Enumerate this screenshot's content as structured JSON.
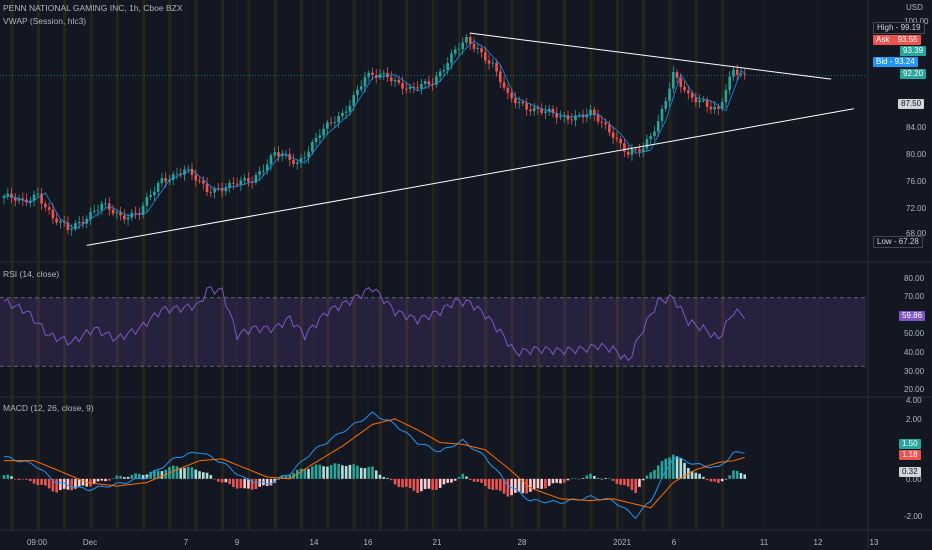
{
  "header": {
    "symbol_line": "PENN NATIONAL GAMING INC, 1h, Cboe BZX",
    "vwap_line": "VWAP (Session, hlc3)",
    "currency": "USD"
  },
  "price_tags": {
    "high": {
      "label": "High",
      "value": "99.19"
    },
    "ask": {
      "label": "Ask",
      "value": "93.55"
    },
    "last": {
      "value": "93.39"
    },
    "bid": {
      "label": "Bid",
      "value": "93.24"
    },
    "vwap": {
      "value": "92.20"
    },
    "level": {
      "value": "87.50"
    },
    "low": {
      "label": "Low",
      "value": "67.28"
    }
  },
  "price_ticks": [
    "100.00",
    "84.00",
    "80.00",
    "76.00",
    "72.00",
    "68.00"
  ],
  "rsi": {
    "title": "RSI (14, close)",
    "ticks": [
      "80.00",
      "70.00",
      "50.00",
      "40.00",
      "30.00",
      "20.00"
    ],
    "value": "59.86"
  },
  "macd": {
    "title": "MACD (12, 26, close, 9)",
    "ticks": [
      "4.00",
      "2.00",
      "0.00",
      "-2.00"
    ],
    "macd_value": "1.50",
    "signal_value": "1.18",
    "hist_value": "0.32"
  },
  "x_ticks": [
    "09:00",
    "Dec",
    "7",
    "9",
    "14",
    "16",
    "21",
    "28",
    "2021",
    "6",
    "11",
    "12",
    "13"
  ],
  "colors": {
    "bg": "#131722",
    "up": "#26a69a",
    "down": "#ef5350",
    "rsi": "#7e57c2",
    "macd": "#2196f3",
    "signal": "#ff6d00",
    "trendline": "#ffffff",
    "session": "#3d2f14"
  },
  "chart_data": {
    "type": "candlestick",
    "symbol": "PENN NATIONAL GAMING INC",
    "interval": "1h",
    "price_range": [
      66.5,
      101.5
    ],
    "price_key_points": [
      {
        "t": 0,
        "price": 75.0
      },
      {
        "t": 5,
        "price": 74.0
      },
      {
        "t": 9,
        "price": 75.5
      },
      {
        "t": 13,
        "price": 71.5
      },
      {
        "t": 17,
        "price": 70.0
      },
      {
        "t": 21,
        "price": 71.5
      },
      {
        "t": 26,
        "price": 73.5
      },
      {
        "t": 31,
        "price": 72.0
      },
      {
        "t": 36,
        "price": 72.5
      },
      {
        "t": 42,
        "price": 77.5
      },
      {
        "t": 48,
        "price": 79.0
      },
      {
        "t": 54,
        "price": 76.0
      },
      {
        "t": 60,
        "price": 76.5
      },
      {
        "t": 66,
        "price": 77.5
      },
      {
        "t": 72,
        "price": 81.5
      },
      {
        "t": 78,
        "price": 80.0
      },
      {
        "t": 84,
        "price": 84.5
      },
      {
        "t": 90,
        "price": 87.5
      },
      {
        "t": 96,
        "price": 93.0
      },
      {
        "t": 102,
        "price": 93.5
      },
      {
        "t": 108,
        "price": 91.0
      },
      {
        "t": 114,
        "price": 92.5
      },
      {
        "t": 120,
        "price": 97.0
      },
      {
        "t": 123,
        "price": 98.6
      },
      {
        "t": 126,
        "price": 97.5
      },
      {
        "t": 130,
        "price": 95.0
      },
      {
        "t": 134,
        "price": 90.0
      },
      {
        "t": 140,
        "price": 88.5
      },
      {
        "t": 148,
        "price": 87.0
      },
      {
        "t": 156,
        "price": 87.5
      },
      {
        "t": 162,
        "price": 84.5
      },
      {
        "t": 166,
        "price": 81.5
      },
      {
        "t": 170,
        "price": 82.0
      },
      {
        "t": 174,
        "price": 86.5
      },
      {
        "t": 178,
        "price": 93.5
      },
      {
        "t": 182,
        "price": 90.0
      },
      {
        "t": 186,
        "price": 89.5
      },
      {
        "t": 190,
        "price": 88.0
      },
      {
        "t": 194,
        "price": 94.0
      },
      {
        "t": 197,
        "price": 93.4
      }
    ],
    "trendlines": [
      {
        "name": "Upper",
        "from": {
          "t": 124,
          "price": 99.8
        },
        "to": {
          "t": 220,
          "price": 92.8
        }
      },
      {
        "name": "Lower",
        "from": {
          "t": 22,
          "price": 67.5
        },
        "to": {
          "t": 226,
          "price": 88.3
        }
      }
    ],
    "rsi_range": [
      15,
      85
    ],
    "rsi_key_points": [
      {
        "t": 0,
        "v": 68
      },
      {
        "t": 6,
        "v": 62
      },
      {
        "t": 12,
        "v": 48
      },
      {
        "t": 18,
        "v": 44
      },
      {
        "t": 24,
        "v": 52
      },
      {
        "t": 30,
        "v": 46
      },
      {
        "t": 36,
        "v": 52
      },
      {
        "t": 42,
        "v": 63
      },
      {
        "t": 48,
        "v": 64
      },
      {
        "t": 52,
        "v": 66
      },
      {
        "t": 54,
        "v": 75
      },
      {
        "t": 58,
        "v": 74
      },
      {
        "t": 62,
        "v": 48
      },
      {
        "t": 66,
        "v": 52
      },
      {
        "t": 72,
        "v": 52
      },
      {
        "t": 76,
        "v": 58
      },
      {
        "t": 80,
        "v": 48
      },
      {
        "t": 86,
        "v": 62
      },
      {
        "t": 92,
        "v": 68
      },
      {
        "t": 98,
        "v": 76
      },
      {
        "t": 104,
        "v": 62
      },
      {
        "t": 110,
        "v": 57
      },
      {
        "t": 116,
        "v": 62
      },
      {
        "t": 120,
        "v": 68
      },
      {
        "t": 124,
        "v": 67
      },
      {
        "t": 128,
        "v": 60
      },
      {
        "t": 132,
        "v": 50
      },
      {
        "t": 136,
        "v": 38
      },
      {
        "t": 142,
        "v": 40
      },
      {
        "t": 148,
        "v": 39
      },
      {
        "t": 154,
        "v": 40
      },
      {
        "t": 158,
        "v": 42
      },
      {
        "t": 162,
        "v": 40
      },
      {
        "t": 166,
        "v": 33
      },
      {
        "t": 170,
        "v": 52
      },
      {
        "t": 174,
        "v": 68
      },
      {
        "t": 178,
        "v": 70
      },
      {
        "t": 182,
        "v": 56
      },
      {
        "t": 186,
        "v": 52
      },
      {
        "t": 190,
        "v": 46
      },
      {
        "t": 194,
        "v": 62
      },
      {
        "t": 197,
        "v": 59.86
      }
    ],
    "rsi_bands": [
      70,
      30
    ],
    "macd_range": [
      -2.6,
      4.4
    ],
    "macd_key_points": [
      {
        "t": 0,
        "m": 1.2,
        "s": 1.0
      },
      {
        "t": 8,
        "m": 0.8,
        "s": 1.0
      },
      {
        "t": 14,
        "m": -0.2,
        "s": 0.5
      },
      {
        "t": 22,
        "m": -0.6,
        "s": -0.2
      },
      {
        "t": 30,
        "m": -0.3,
        "s": -0.4
      },
      {
        "t": 38,
        "m": 0.1,
        "s": -0.2
      },
      {
        "t": 46,
        "m": 1.2,
        "s": 0.5
      },
      {
        "t": 52,
        "m": 1.5,
        "s": 1.0
      },
      {
        "t": 58,
        "m": 0.9,
        "s": 1.1
      },
      {
        "t": 64,
        "m": 0.0,
        "s": 0.6
      },
      {
        "t": 70,
        "m": -0.3,
        "s": 0.1
      },
      {
        "t": 76,
        "m": 0.3,
        "s": 0.0
      },
      {
        "t": 82,
        "m": 1.5,
        "s": 0.8
      },
      {
        "t": 90,
        "m": 2.6,
        "s": 1.8
      },
      {
        "t": 98,
        "m": 3.6,
        "s": 3.0
      },
      {
        "t": 104,
        "m": 3.0,
        "s": 3.3
      },
      {
        "t": 110,
        "m": 2.0,
        "s": 2.7
      },
      {
        "t": 116,
        "m": 1.5,
        "s": 2.0
      },
      {
        "t": 122,
        "m": 2.1,
        "s": 1.9
      },
      {
        "t": 128,
        "m": 1.2,
        "s": 1.6
      },
      {
        "t": 134,
        "m": -0.3,
        "s": 0.6
      },
      {
        "t": 140,
        "m": -1.2,
        "s": -0.5
      },
      {
        "t": 148,
        "m": -1.3,
        "s": -1.1
      },
      {
        "t": 156,
        "m": -1.0,
        "s": -1.2
      },
      {
        "t": 162,
        "m": -1.2,
        "s": -1.1
      },
      {
        "t": 168,
        "m": -2.1,
        "s": -1.4
      },
      {
        "t": 172,
        "m": -1.2,
        "s": -1.6
      },
      {
        "t": 178,
        "m": 1.2,
        "s": -0.2
      },
      {
        "t": 184,
        "m": 0.8,
        "s": 0.5
      },
      {
        "t": 190,
        "m": 0.6,
        "s": 0.9
      },
      {
        "t": 194,
        "m": 1.4,
        "s": 1.0
      },
      {
        "t": 197,
        "m": 1.5,
        "s": 1.18
      }
    ]
  }
}
